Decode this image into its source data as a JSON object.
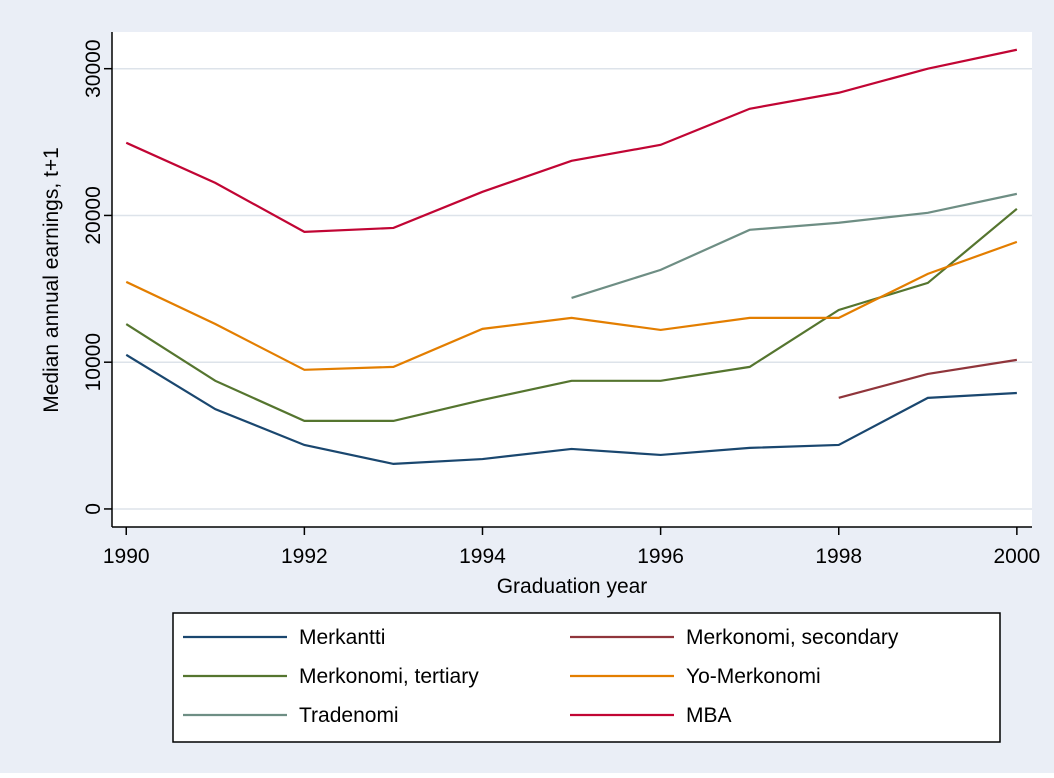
{
  "chart_data": {
    "type": "line",
    "x_label": "Graduation year",
    "y_label": "Median annual earnings, t+1",
    "x": [
      1990,
      1991,
      1992,
      1993,
      1994,
      1995,
      1996,
      1997,
      1998,
      1999,
      2000
    ],
    "xlim": [
      1989.84,
      2000.17
    ],
    "xticks": [
      1990,
      1992,
      1994,
      1996,
      1998,
      2000
    ],
    "ylim": [
      -1230,
      32500
    ],
    "yticks": [
      0,
      10000,
      20000,
      30000
    ],
    "grid": true,
    "legend": "bottom",
    "series": [
      {
        "name": "Merkantti",
        "color": "#1a476f",
        "values": [
          10500,
          6800,
          4360,
          3070,
          3400,
          4090,
          3680,
          4160,
          4360,
          7570,
          7900
        ]
      },
      {
        "name": "Merkonomi, secondary",
        "color": "#90353b",
        "values": [
          null,
          null,
          null,
          null,
          null,
          null,
          null,
          null,
          7570,
          9200,
          10160
        ]
      },
      {
        "name": "Merkonomi, tertiary",
        "color": "#55752f",
        "values": [
          12600,
          8730,
          6000,
          6000,
          7430,
          8730,
          8730,
          9680,
          13560,
          15400,
          20450
        ]
      },
      {
        "name": "Yo-Merkonomi",
        "color": "#e37e00",
        "values": [
          15470,
          12600,
          9480,
          9680,
          12270,
          13020,
          12200,
          13020,
          13020,
          16020,
          18200
        ]
      },
      {
        "name": "Tradenomi",
        "color": "#6e8e84",
        "values": [
          null,
          null,
          null,
          null,
          null,
          14380,
          16290,
          19020,
          19500,
          20180,
          21470
        ]
      },
      {
        "name": "MBA",
        "color": "#c10534",
        "values": [
          24950,
          22220,
          18880,
          19150,
          21610,
          23720,
          24810,
          27270,
          28360,
          30000,
          31290
        ]
      }
    ]
  }
}
